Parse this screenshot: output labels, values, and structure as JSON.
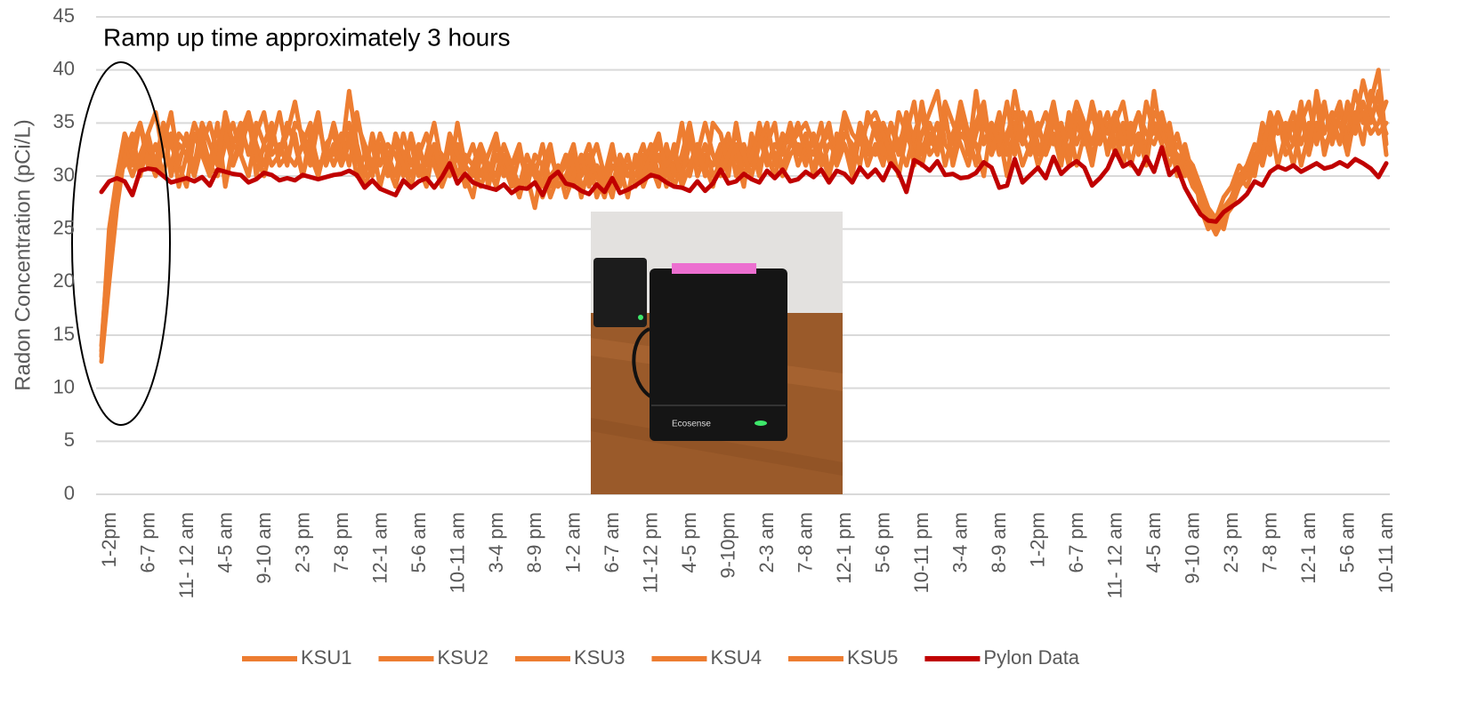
{
  "chart_data": {
    "type": "line",
    "annotation": "Ramp up time approximately 3 hours",
    "y_label": "Radon Concentration (pCi/L)",
    "photo_text": "Ecosense",
    "ylim": [
      0,
      45
    ],
    "yticks": [
      0,
      5,
      10,
      15,
      20,
      25,
      30,
      35,
      40,
      45
    ],
    "grid": true,
    "legend": "bottom",
    "categories": [
      "1-2pm",
      null,
      null,
      null,
      null,
      "6-7 pm",
      null,
      null,
      null,
      null,
      "11- 12 am",
      null,
      null,
      null,
      null,
      "4-5 am",
      null,
      null,
      null,
      null,
      "9-10 am",
      null,
      null,
      null,
      null,
      "2-3 pm",
      null,
      null,
      null,
      null,
      "7-8 pm",
      null,
      null,
      null,
      null,
      "12-1 am",
      null,
      null,
      null,
      null,
      "5-6 am",
      null,
      null,
      null,
      null,
      "10-11 am",
      null,
      null,
      null,
      null,
      "3-4 pm",
      null,
      null,
      null,
      null,
      "8-9 pm",
      null,
      null,
      null,
      null,
      "1-2 am",
      null,
      null,
      null,
      null,
      "6-7 am",
      null,
      null,
      null,
      null,
      "11-12 pm",
      null,
      null,
      null,
      null,
      "4-5 pm",
      null,
      null,
      null,
      null,
      "9-10pm",
      null,
      null,
      null,
      null,
      "2-3 am",
      null,
      null,
      null,
      null,
      "7-8 am",
      null,
      null,
      null,
      null,
      "12-1 pm",
      null,
      null,
      null,
      null,
      "5-6 pm",
      null,
      null,
      null,
      null,
      "10-11 pm",
      null,
      null,
      null,
      null,
      "3-4 am",
      null,
      null,
      null,
      null,
      "8-9 am",
      null,
      null,
      null,
      null,
      "1-2pm",
      null,
      null,
      null,
      null,
      "6-7 pm",
      null,
      null,
      null,
      null,
      "11- 12 am",
      null,
      null,
      null,
      null,
      "4-5 am",
      null,
      null,
      null,
      null,
      "9-10 am",
      null,
      null,
      null,
      null,
      "2-3 pm",
      null,
      null,
      null,
      null,
      "7-8 pm",
      null,
      null,
      null,
      null,
      "12-1 am",
      null,
      null,
      null,
      null,
      "5-6 am",
      null,
      null,
      null,
      null,
      "10-11 am",
      null
    ],
    "series": [
      {
        "name": "KSU1",
        "color": "#ED7D31",
        "values": [
          13,
          22,
          29,
          33,
          31,
          35,
          32,
          30,
          33,
          36,
          31,
          29,
          34,
          32,
          30,
          33,
          35,
          31,
          34,
          36,
          33,
          31,
          34,
          32,
          35,
          33,
          30,
          34,
          31,
          32,
          35,
          32,
          38,
          33,
          30,
          34,
          31,
          33,
          32,
          30,
          34,
          31,
          29,
          33,
          32,
          30,
          35,
          31,
          33,
          30,
          32,
          34,
          30,
          31,
          33,
          29,
          32,
          31,
          28,
          30,
          32,
          29,
          31,
          33,
          30,
          28,
          31,
          30,
          32,
          29,
          31,
          33,
          30,
          32,
          29,
          31,
          34,
          30,
          32,
          31,
          33,
          30,
          35,
          31,
          33,
          30,
          34,
          32,
          31,
          33,
          35,
          32,
          31,
          33,
          34,
          31,
          33,
          30,
          34,
          32,
          35,
          33,
          31,
          36,
          34,
          32,
          37,
          33,
          35,
          31,
          34,
          36,
          32,
          38,
          33,
          35,
          32,
          34,
          36,
          33,
          35,
          32,
          34,
          37,
          33,
          35,
          31,
          34,
          36,
          33,
          35,
          32,
          34,
          33,
          36,
          34,
          33,
          35,
          32,
          34,
          31,
          29,
          28,
          27,
          25,
          26,
          27,
          29,
          30,
          32,
          33,
          35,
          31,
          34,
          36,
          33,
          35,
          34,
          37,
          33,
          36,
          34,
          38,
          35,
          37,
          40,
          33
        ]
      },
      {
        "name": "KSU2",
        "color": "#ED7D31",
        "values": [
          12.5,
          20,
          27,
          32,
          34,
          30,
          33,
          31,
          35,
          30,
          33,
          32,
          30,
          34,
          31,
          35,
          29,
          33,
          32,
          36,
          30,
          33,
          35,
          31,
          32,
          34,
          30,
          33,
          36,
          31,
          33,
          31,
          34,
          30,
          32,
          33,
          29,
          32,
          30,
          34,
          31,
          33,
          30,
          32,
          29,
          31,
          33,
          30,
          28,
          32,
          30,
          33,
          31,
          29,
          32,
          30,
          27,
          31,
          33,
          29,
          30,
          32,
          28,
          31,
          33,
          30,
          29,
          32,
          30,
          31,
          33,
          30,
          32,
          29,
          31,
          35,
          30,
          33,
          31,
          29,
          32,
          34,
          30,
          33,
          31,
          35,
          32,
          30,
          33,
          34,
          31,
          33,
          32,
          35,
          30,
          34,
          33,
          31,
          35,
          33,
          32,
          35,
          33,
          30,
          34,
          37,
          32,
          35,
          33,
          36,
          31,
          34,
          33,
          35,
          37,
          32,
          34,
          30,
          35,
          33,
          36,
          33,
          32,
          35,
          34,
          31,
          35,
          33,
          37,
          34,
          33,
          35,
          31,
          34,
          36,
          32,
          38,
          33,
          35,
          31,
          33,
          30,
          29,
          26,
          25,
          27,
          28,
          30,
          31,
          33,
          31,
          34,
          36,
          32,
          33,
          37,
          32,
          35,
          33,
          34,
          35,
          32,
          36,
          33,
          38,
          36,
          34
        ]
      },
      {
        "name": "KSU3",
        "color": "#ED7D31",
        "values": [
          13,
          23,
          30,
          31,
          33,
          35,
          31,
          33,
          30,
          34,
          29,
          32,
          35,
          33,
          31,
          30,
          33,
          35,
          32,
          30,
          34,
          36,
          32,
          33,
          31,
          35,
          34,
          32,
          30,
          33,
          31,
          33,
          35,
          32,
          29,
          31,
          33,
          30,
          34,
          32,
          30,
          32,
          34,
          31,
          29,
          33,
          30,
          32,
          31,
          29,
          31,
          29,
          32,
          30,
          28,
          31,
          30,
          33,
          29,
          31,
          29,
          31,
          30,
          32,
          28,
          30,
          33,
          29,
          31,
          30,
          32,
          31,
          29,
          33,
          30,
          32,
          35,
          31,
          33,
          30,
          31,
          33,
          32,
          29,
          34,
          31,
          33,
          35,
          30,
          32,
          33,
          31,
          34,
          32,
          30,
          33,
          35,
          32,
          34,
          31,
          33,
          31,
          35,
          32,
          36,
          33,
          31,
          34,
          32,
          35,
          33,
          37,
          34,
          31,
          35,
          33,
          36,
          32,
          34,
          31,
          33,
          35,
          32,
          34,
          31,
          36,
          33,
          35,
          32,
          34,
          36,
          33,
          35,
          31,
          34,
          32,
          35,
          33,
          31,
          33,
          32,
          30,
          28,
          26,
          24.5,
          26,
          28,
          29,
          31,
          30,
          34,
          32,
          36,
          33,
          35,
          31,
          34,
          37,
          32,
          35,
          33,
          36,
          34,
          37,
          35,
          38,
          32
        ]
      },
      {
        "name": "KSU4",
        "color": "#ED7D31",
        "values": [
          14,
          24,
          28,
          32,
          30,
          32,
          34,
          31,
          35,
          33,
          31,
          34,
          30,
          33,
          35,
          32,
          34,
          31,
          33,
          35,
          32,
          30,
          33,
          36,
          32,
          31,
          33,
          35,
          30,
          33,
          34,
          31,
          33,
          36,
          32,
          30,
          33,
          31,
          29,
          32,
          33,
          30,
          32,
          35,
          31,
          30,
          32,
          29,
          31,
          33,
          29,
          32,
          30,
          31,
          29,
          32,
          30,
          28,
          30,
          31,
          28,
          30,
          32,
          29,
          31,
          30,
          28,
          32,
          30,
          31,
          30,
          32,
          34,
          30,
          33,
          29,
          31,
          33,
          30,
          35,
          34,
          31,
          33,
          30,
          32,
          34,
          31,
          33,
          32,
          35,
          32,
          34,
          30,
          33,
          35,
          31,
          34,
          33,
          31,
          36,
          34,
          32,
          35,
          33,
          31,
          34,
          36,
          32,
          33,
          37,
          35,
          33,
          31,
          34,
          36,
          32,
          35,
          33,
          38,
          34,
          32,
          34,
          36,
          33,
          35,
          32,
          36,
          34,
          31,
          35,
          34,
          36,
          33,
          35,
          32,
          37,
          34,
          36,
          33,
          32,
          30,
          31,
          29,
          27,
          26,
          25,
          28,
          30,
          29,
          31,
          35,
          33,
          36,
          34,
          31,
          35,
          37,
          33,
          36,
          35,
          37,
          33,
          35,
          39,
          36,
          34,
          35
        ]
      },
      {
        "name": "KSU5",
        "color": "#ED7D31",
        "values": [
          13.5,
          25,
          30,
          34,
          32,
          31,
          34,
          36,
          32,
          31,
          34,
          33,
          31,
          35,
          33,
          31,
          36,
          33,
          35,
          32,
          35,
          33,
          31,
          32,
          34,
          37,
          33,
          31,
          35,
          32,
          32,
          34,
          31,
          35,
          33,
          31,
          34,
          32,
          33,
          31,
          29,
          32,
          31,
          33,
          30,
          34,
          32,
          31,
          30,
          33,
          31,
          30,
          33,
          31,
          32,
          30,
          31,
          29,
          32,
          30,
          31,
          33,
          29,
          30,
          31,
          29,
          32,
          31,
          28,
          32,
          29,
          31,
          33,
          31,
          32,
          30,
          33,
          32,
          35,
          32,
          30,
          32,
          34,
          32,
          30,
          33,
          35,
          31,
          34,
          33,
          34,
          35,
          33,
          31,
          33,
          32,
          36,
          34,
          33,
          35,
          36,
          34,
          32,
          33,
          35,
          31,
          34,
          36,
          38,
          33,
          32,
          35,
          34,
          33,
          30,
          35,
          33,
          37,
          32,
          36,
          34,
          31,
          33,
          36,
          32,
          34,
          37,
          35,
          33,
          36,
          32,
          35,
          37,
          33,
          34,
          31,
          36,
          35,
          34,
          30,
          32,
          31,
          27,
          25,
          26,
          28,
          29,
          31,
          30,
          31,
          32,
          36,
          34,
          35,
          33,
          36,
          32,
          38,
          34,
          36,
          33,
          37,
          35,
          36,
          34,
          35,
          37
        ]
      },
      {
        "name": "Pylon Data",
        "color": "#C00000",
        "values": [
          28.5,
          29.5,
          29.8,
          29.5,
          28.2,
          30.5,
          30.7,
          30.6,
          30,
          29.4,
          29.6,
          29.8,
          29.5,
          29.9,
          29.1,
          30.6,
          30.4,
          30.2,
          30.1,
          29.4,
          29.7,
          30.3,
          30.1,
          29.6,
          29.8,
          29.6,
          30.1,
          29.9,
          29.7,
          29.9,
          30.1,
          30.2,
          30.5,
          30.1,
          28.9,
          29.6,
          28.8,
          28.5,
          28.2,
          29.6,
          28.9,
          29.5,
          29.8,
          28.9,
          29.9,
          31.2,
          29.3,
          30.2,
          29.4,
          29.1,
          28.9,
          28.7,
          29.2,
          28.4,
          28.9,
          28.8,
          29.4,
          28.2,
          29.8,
          30.4,
          29.3,
          29.1,
          28.6,
          28.3,
          29.2,
          28.5,
          29.8,
          28.4,
          28.7,
          29.1,
          29.6,
          30.1,
          29.9,
          29.4,
          29,
          28.9,
          28.6,
          29.5,
          28.6,
          29.3,
          30.6,
          29.3,
          29.5,
          30.2,
          29.7,
          29.4,
          30.5,
          29.8,
          30.6,
          29.5,
          29.7,
          30.4,
          29.9,
          30.6,
          29.4,
          30.5,
          30.2,
          29.4,
          30.8,
          29.9,
          30.6,
          29.6,
          31.2,
          30.3,
          28.5,
          31.5,
          31.1,
          30.5,
          31.4,
          30.1,
          30.2,
          29.8,
          29.9,
          30.3,
          31.3,
          30.8,
          28.9,
          29.1,
          31.6,
          29.4,
          30.1,
          30.8,
          29.8,
          31.8,
          30.2,
          30.9,
          31.4,
          30.8,
          29.1,
          29.8,
          30.7,
          32.4,
          30.9,
          31.3,
          30.2,
          31.8,
          30.4,
          32.7,
          30.1,
          30.8,
          28.9,
          27.6,
          26.4,
          25.8,
          25.7,
          26.6,
          27.1,
          27.6,
          28.3,
          29.5,
          29.1,
          30.4,
          30.9,
          30.6,
          31,
          30.4,
          30.8,
          31.2,
          30.7,
          30.9,
          31.3,
          30.9,
          31.6,
          31.2,
          30.7,
          29.9,
          31.2
        ]
      }
    ]
  }
}
